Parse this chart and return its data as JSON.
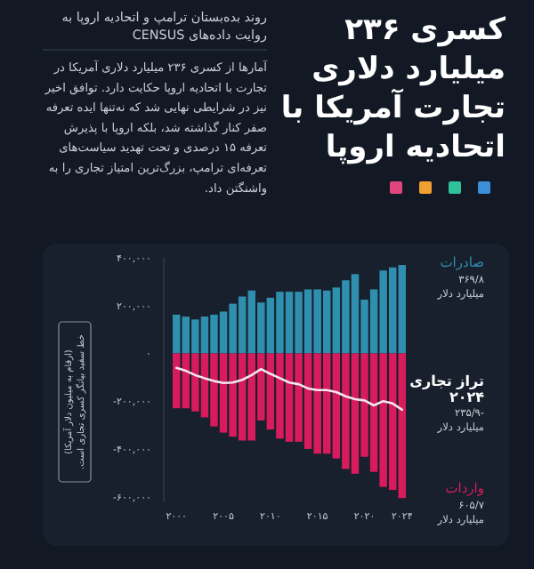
{
  "chart_data": {
    "type": "bar",
    "title": "کسری ۲۳۶ میلیارد دلاری تجارت آمریکا با اتحادیه اروپا",
    "subtitle": "روند بده‌بستان ترامپ و اتحادیه اروپا به روایت داده‌های CENSUS",
    "annotations": [
      "آمارها از کسری ۲۳۶ میلیارد دلاری آمریکا در تجارت با اتحادیه اروپا حکایت دارد. توافق اخیر نیز در شرایطی نهایی شد که نه‌تنها ایده تعرفه صفر کنار گذاشته شد، بلکه اروپا با پذیرش تعرفه ۱۵ درصدی و تحت تهدید سیاست‌های تعرفه‌ای ترامپ، بزرگ‌ترین امتیاز تجاری را به واشنگتن داد.",
      "۳۶۹/۸",
      "میلیارد دلار",
      "۲۰۲۴",
      "-۲۳۵/۹",
      "میلیارد دلار",
      "۶۰۵/۷",
      "میلیارد دلار",
      "خط سفید بیانگر کسری تجاری است."
    ],
    "ylabel": "(ارقام به میلیون دلار آمریکا)",
    "categories": [
      "۲۰۰۰",
      null,
      null,
      null,
      null,
      "۲۰۰۵",
      null,
      null,
      null,
      null,
      "۲۰۱۰",
      null,
      null,
      null,
      null,
      "۲۰۱۵",
      null,
      null,
      null,
      null,
      "۲۰۲۰",
      null,
      null,
      null,
      "۲۰۲۴"
    ],
    "series": [
      {
        "name": "صادرات",
        "color": "#2f8fae",
        "values": [
          162000,
          154000,
          142000,
          154000,
          162000,
          175000,
          208000,
          238000,
          263000,
          213000,
          233000,
          258000,
          258000,
          258000,
          268000,
          268000,
          263000,
          276000,
          306000,
          332000,
          225000,
          268000,
          347000,
          360000,
          370000
        ]
      },
      {
        "name": "تراز تجاری",
        "type": "line",
        "color": "#f3e6ee",
        "values": [
          -61000,
          -73000,
          -91000,
          -104000,
          -116000,
          -124000,
          -122000,
          -111000,
          -91000,
          -66000,
          -86000,
          -104000,
          -122000,
          -129000,
          -147000,
          -154000,
          -154000,
          -162000,
          -180000,
          -192000,
          -197000,
          -218000,
          -200000,
          -210000,
          -236000
        ]
      },
      {
        "name": "واردات",
        "color": "#d81b5c",
        "values": [
          -230000,
          -230000,
          -243000,
          -268000,
          -306000,
          -332000,
          -349000,
          -365000,
          -365000,
          -281000,
          -319000,
          -357000,
          -370000,
          -370000,
          -400000,
          -420000,
          -420000,
          -440000,
          -484000,
          -504000,
          -433000,
          -496000,
          -559000,
          -572000,
          -606000
        ]
      }
    ],
    "ylim": [
      -620000,
      400000
    ],
    "stacked": true,
    "yticks": [
      {
        "value": 400000,
        "label": "۴۰۰,۰۰۰"
      },
      {
        "value": 200000,
        "label": "۲۰۰,۰۰۰"
      },
      {
        "value": 0,
        "label": "۰"
      },
      {
        "value": -200000,
        "label": "-۲۰۰,۰۰۰"
      },
      {
        "value": -400000,
        "label": "-۴۰۰,۰۰۰"
      },
      {
        "value": -600000,
        "label": "-۶۰۰,۰۰۰"
      }
    ],
    "grid": false,
    "legend": "right"
  }
}
